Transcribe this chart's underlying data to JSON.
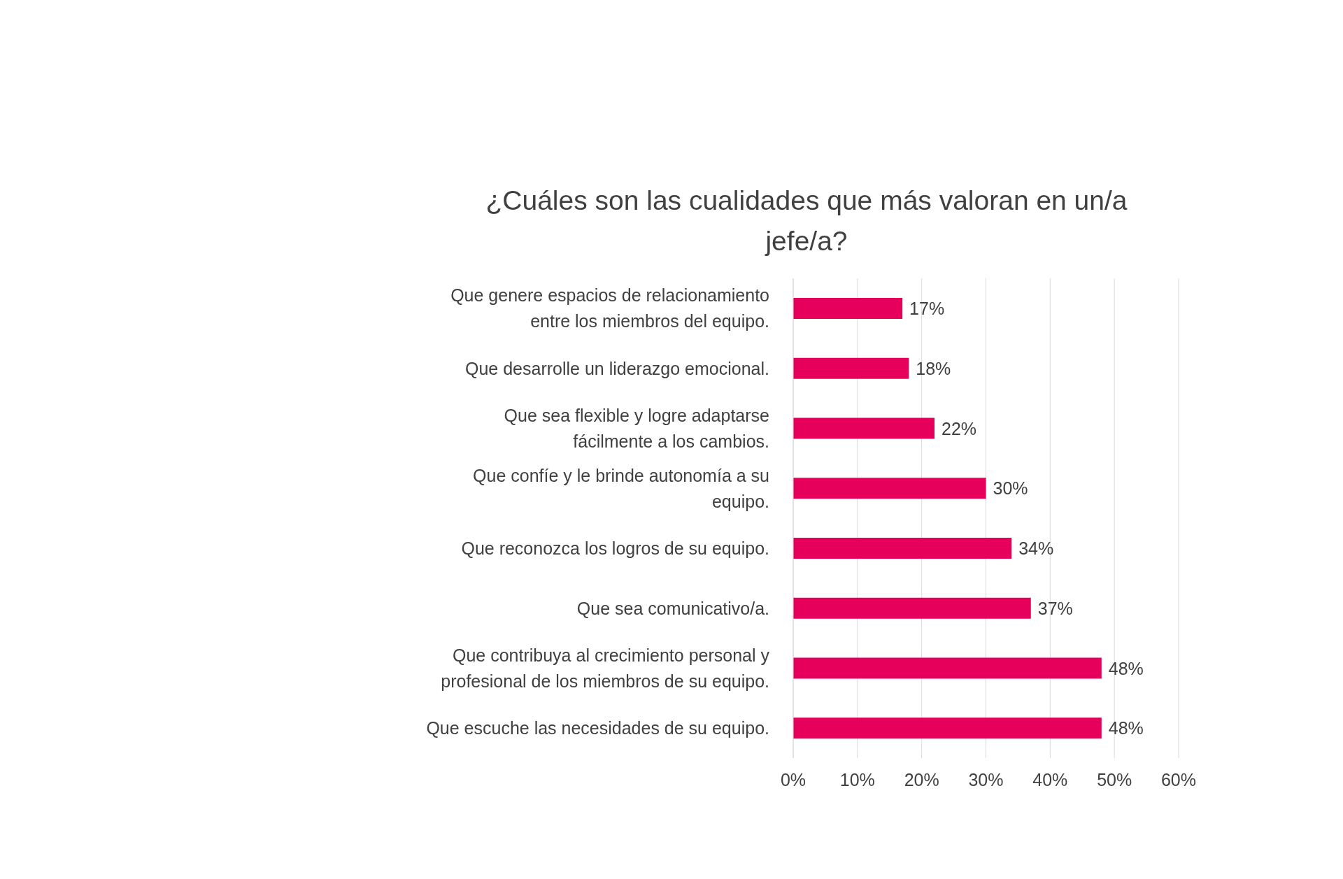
{
  "chart_data": {
    "type": "bar",
    "orientation": "horizontal",
    "title": "¿Cuáles son las cualidades que más valoran en un/a jefe/a?",
    "categories": [
      "Que genere espacios de relacionamiento entre los miembros del equipo.",
      "Que desarrolle un liderazgo emocional.",
      "Que sea flexible y logre adaptarse fácilmente a los cambios.",
      "Que confíe y le brinde autonomía a su equipo.",
      "Que reconozca los logros de su equipo.",
      "Que sea comunicativo/a.",
      "Que contribuya al crecimiento personal y profesional de los miembros de su equipo.",
      "Que escuche las necesidades de su equipo."
    ],
    "values": [
      17,
      18,
      22,
      30,
      34,
      37,
      48,
      48
    ],
    "value_labels": [
      "17%",
      "18%",
      "22%",
      "30%",
      "34%",
      "37%",
      "48%",
      "48%"
    ],
    "color": "#e6005c",
    "xlim": [
      0,
      60
    ],
    "xticks": [
      {
        "value": 0,
        "label": "0%"
      },
      {
        "value": 10,
        "label": "10%"
      },
      {
        "value": 20,
        "label": "20%"
      },
      {
        "value": 30,
        "label": "30%"
      },
      {
        "value": 40,
        "label": "40%"
      },
      {
        "value": 50,
        "label": "50%"
      },
      {
        "value": 60,
        "label": "60%"
      }
    ],
    "grid": "x"
  }
}
